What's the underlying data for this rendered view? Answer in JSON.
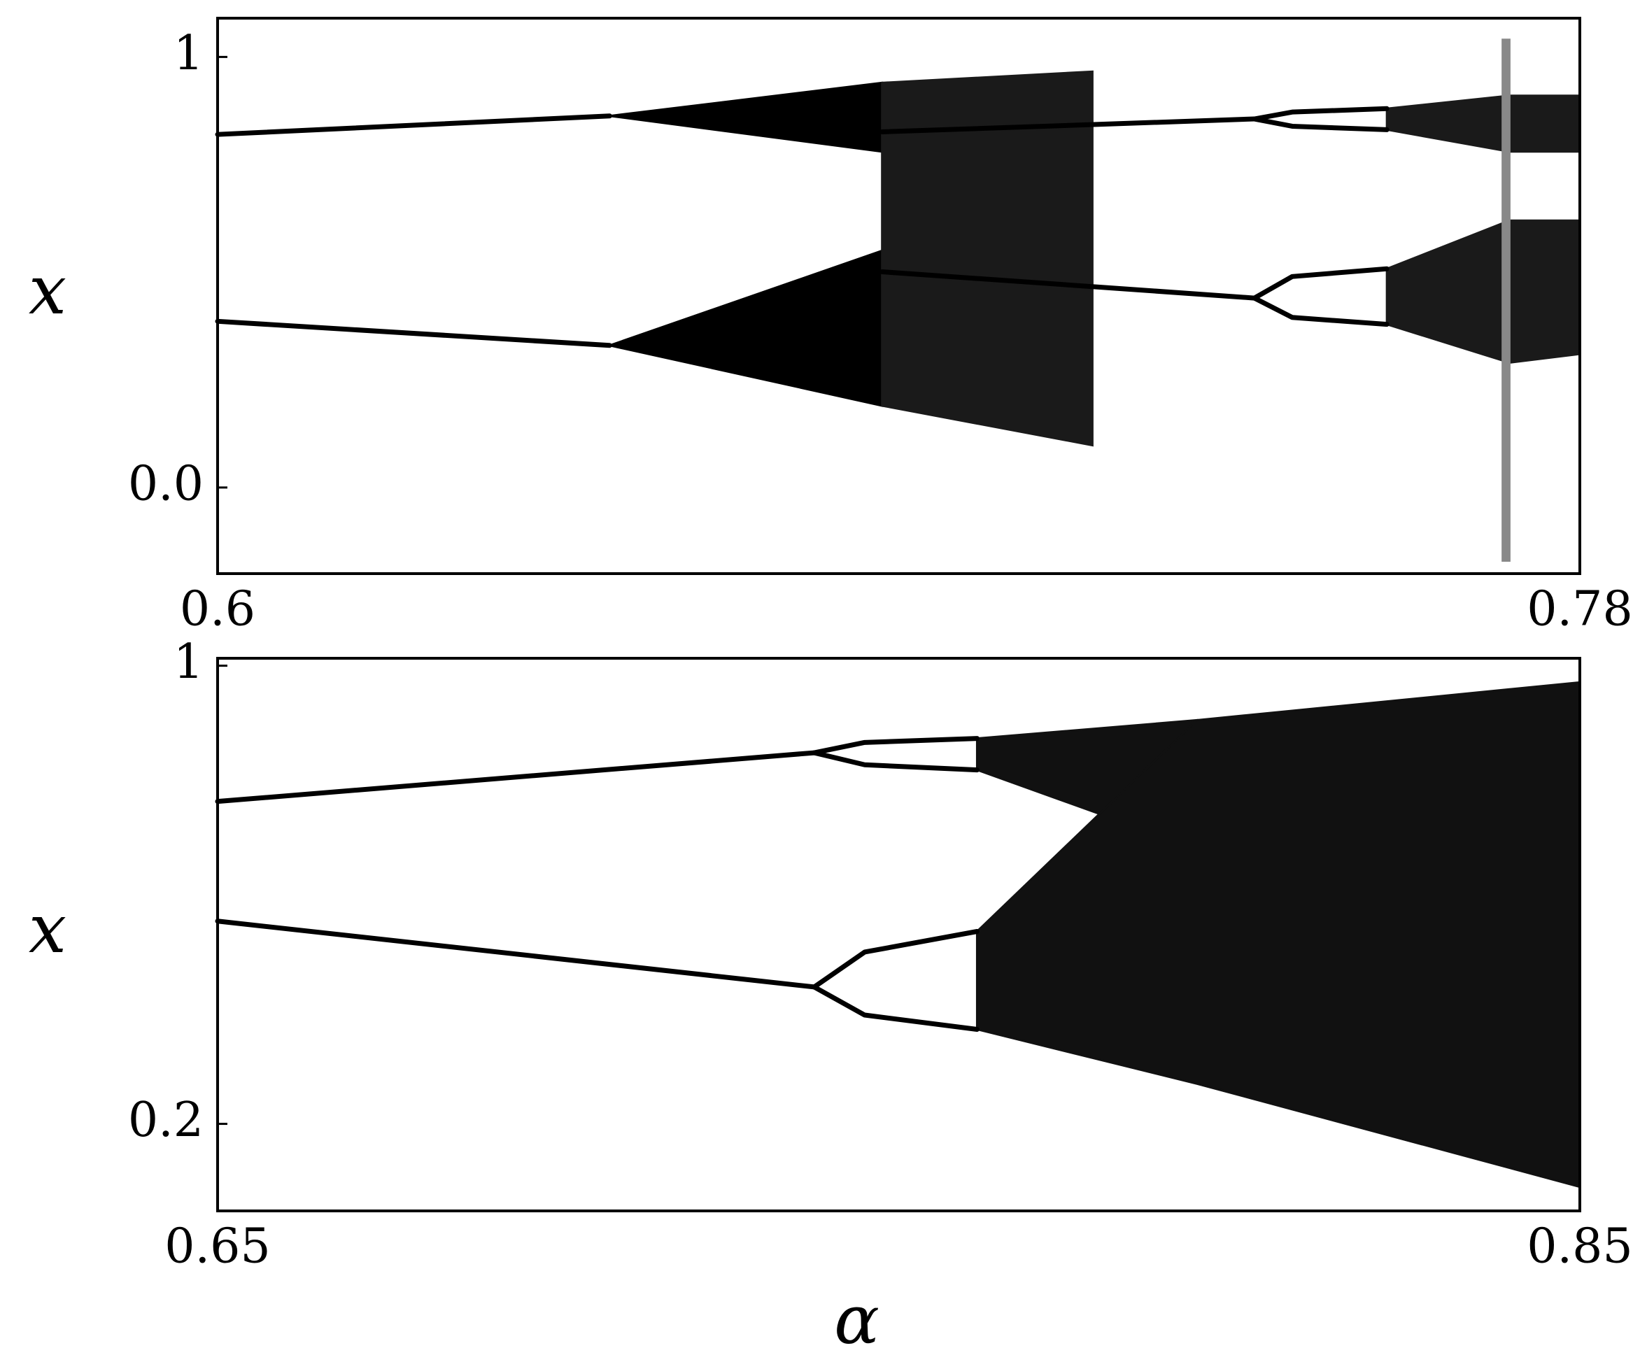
{
  "chart_data": [
    {
      "type": "bifurcation",
      "ylabel": "x",
      "xlim": [
        0.6,
        0.78
      ],
      "xticks": [
        0.6,
        0.78
      ],
      "ylim": [
        -0.2,
        1.09
      ],
      "yticks": [
        {
          "value": 0,
          "label": "0.0"
        },
        1
      ],
      "series": [
        {
          "color": "#000000",
          "x": [
            0.6,
            0.6518
          ],
          "values": [
            0.82,
            0.863
          ]
        },
        {
          "color": "#000000",
          "x": [
            0.6,
            0.6518
          ],
          "values": [
            0.386,
            0.33
          ]
        },
        {
          "color": "#000000",
          "x": [
            0.6878,
            0.737
          ],
          "values": [
            0.826,
            0.856
          ]
        },
        {
          "color": "#000000",
          "x": [
            0.6878,
            0.737
          ],
          "values": [
            0.501,
            0.44
          ]
        },
        {
          "color": "#000000",
          "x": [
            0.737,
            0.742,
            0.7545
          ],
          "values": [
            0.856,
            0.872,
            0.88
          ]
        },
        {
          "color": "#000000",
          "x": [
            0.737,
            0.742,
            0.7545
          ],
          "values": [
            0.856,
            0.839,
            0.831
          ]
        },
        {
          "color": "#000000",
          "x": [
            0.737,
            0.742,
            0.7545
          ],
          "values": [
            0.44,
            0.49,
            0.508
          ]
        },
        {
          "color": "#000000",
          "x": [
            0.737,
            0.742,
            0.7545
          ],
          "values": [
            0.44,
            0.395,
            0.379
          ]
        }
      ],
      "bands": [
        {
          "color": "#000000",
          "x": [
            0.6518,
            0.6878
          ],
          "upper": [
            0.863,
            0.94
          ],
          "lower": [
            0.863,
            0.78
          ]
        },
        {
          "color": "#000000",
          "x": [
            0.6518,
            0.6878
          ],
          "upper": [
            0.33,
            0.55
          ],
          "lower": [
            0.33,
            0.19
          ]
        },
        {
          "color": "#1a1a1a",
          "x": [
            0.6878,
            0.7156
          ],
          "upper": [
            0.94,
            0.966
          ],
          "lower": [
            0.19,
            0.098
          ]
        },
        {
          "color": "#1a1a1a",
          "x": [
            0.7545,
            0.7707,
            0.78
          ],
          "upper": [
            0.88,
            0.91,
            0.91
          ],
          "lower": [
            0.831,
            0.78,
            0.78
          ]
        },
        {
          "color": "#1a1a1a",
          "x": [
            0.7545,
            0.7707,
            0.78
          ],
          "upper": [
            0.508,
            0.62,
            0.62
          ],
          "lower": [
            0.379,
            0.29,
            0.31
          ]
        },
        {
          "color": "#888888",
          "x": [
            0.7698,
            0.7707
          ],
          "upper": [
            1.04,
            1.04
          ],
          "lower": [
            -0.17,
            -0.17
          ]
        }
      ]
    },
    {
      "type": "bifurcation",
      "ylabel": "x",
      "xlabel": "α",
      "xlim": [
        0.65,
        0.85
      ],
      "xticks": [
        0.65,
        0.85
      ],
      "ylim": [
        0.048,
        1.013
      ],
      "yticks": [
        0.2,
        1
      ],
      "series": [
        {
          "color": "#000000",
          "x": [
            0.65,
            0.7376
          ],
          "values": [
            0.763,
            0.848
          ]
        },
        {
          "color": "#000000",
          "x": [
            0.65,
            0.7376
          ],
          "values": [
            0.554,
            0.439
          ]
        },
        {
          "color": "#000000",
          "x": [
            0.7376,
            0.745,
            0.7615
          ],
          "values": [
            0.848,
            0.866,
            0.873
          ]
        },
        {
          "color": "#000000",
          "x": [
            0.7376,
            0.745,
            0.7615
          ],
          "values": [
            0.848,
            0.827,
            0.818
          ]
        },
        {
          "color": "#000000",
          "x": [
            0.7376,
            0.745,
            0.7615
          ],
          "values": [
            0.439,
            0.5,
            0.536
          ]
        },
        {
          "color": "#000000",
          "x": [
            0.7376,
            0.745,
            0.7615
          ],
          "values": [
            0.439,
            0.39,
            0.365
          ]
        }
      ],
      "bands": [
        {
          "color": "#111111",
          "x": [
            0.7615,
            0.7938
          ],
          "upper": [
            0.873,
            0.905
          ],
          "lower": [
            0.818,
            0.68
          ]
        },
        {
          "color": "#111111",
          "x": [
            0.7615,
            0.7938,
            0.85
          ],
          "upper": [
            0.536,
            0.905,
            0.971
          ],
          "lower": [
            0.365,
            0.27,
            0.09
          ]
        }
      ]
    }
  ]
}
